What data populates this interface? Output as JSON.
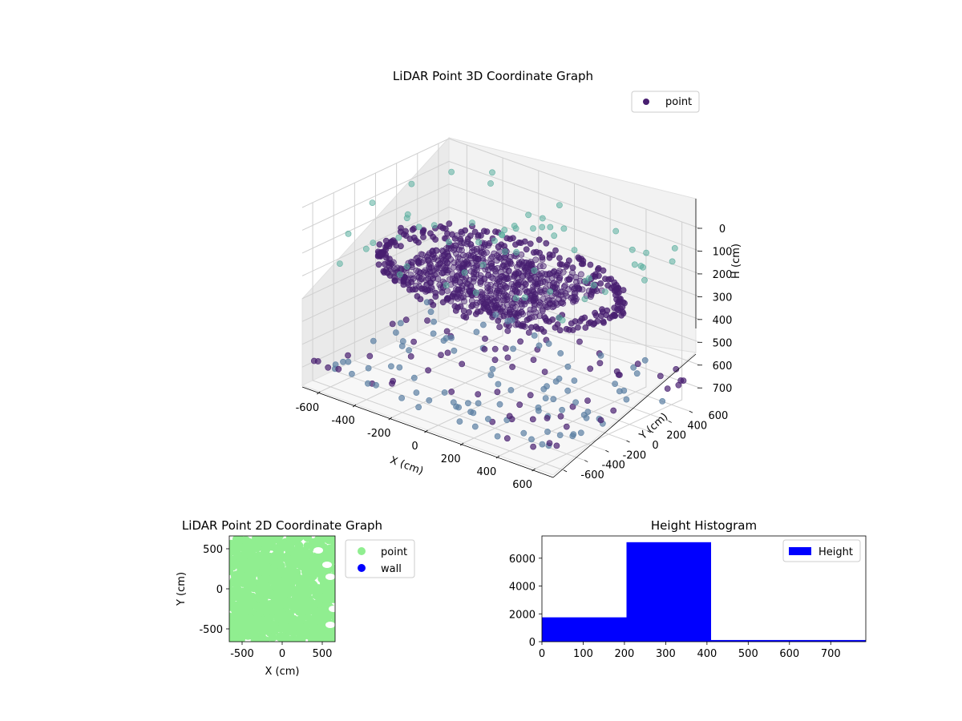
{
  "chart_data": [
    {
      "type": "scatter",
      "projection": "3d",
      "title": "LiDAR Point 3D Coordinate Graph",
      "xlabel": "X (cm)",
      "ylabel": "Y (cm)",
      "zlabel": "H (cm)",
      "xticks": [
        "-600",
        "-400",
        "-200",
        "0",
        "200",
        "400",
        "600"
      ],
      "yticks": [
        "-600",
        "-400",
        "-200",
        "0",
        "200",
        "400",
        "600"
      ],
      "zticks": [
        "0",
        "100",
        "200",
        "300",
        "400",
        "500",
        "600",
        "700"
      ],
      "xlim": [
        -700,
        700
      ],
      "ylim": [
        -700,
        700
      ],
      "zlim": [
        0,
        780
      ],
      "zinverted": true,
      "legend": {
        "entries": [
          "point"
        ],
        "position": "top-right"
      },
      "colormap": "viridis",
      "marker_colors": {
        "dominant": "#481f70",
        "outer": "#5b7fa3",
        "high": "#5aae9e"
      },
      "series": [
        {
          "name": "point",
          "description_groups": [
            {
              "group": "inner ring wall",
              "radius": 620,
              "h": [
                230,
                300
              ]
            },
            {
              "group": "central mass",
              "x": [
                -450,
                350
              ],
              "y": [
                -350,
                400
              ],
              "h": [
                260,
                320
              ]
            },
            {
              "group": "sparse floor points",
              "x": [
                -700,
                700
              ],
              "y": [
                -700,
                700
              ],
              "h": [
                650,
                700
              ]
            },
            {
              "group": "outer boundary points",
              "x": [
                -700,
                700
              ],
              "y": [
                -700,
                700
              ],
              "h": [
                50,
                200
              ]
            }
          ]
        }
      ],
      "grid": true
    },
    {
      "type": "scatter",
      "title": "LiDAR Point 2D Coordinate Graph",
      "xlabel": "X (cm)",
      "ylabel": "Y (cm)",
      "xticks": [
        "-500",
        "0",
        "500"
      ],
      "yticks": [
        "500",
        "0",
        "-500"
      ],
      "xlim": [
        -660,
        660
      ],
      "ylim": [
        -660,
        660
      ],
      "legend": {
        "entries": [
          "point",
          "wall"
        ],
        "position": "outside-right"
      },
      "series": [
        {
          "name": "point",
          "color": "#90ee90"
        },
        {
          "name": "wall",
          "color": "#0000ff"
        }
      ]
    },
    {
      "type": "bar",
      "title": "Height Histogram",
      "xticks": [
        "0",
        "100",
        "200",
        "300",
        "400",
        "500",
        "600",
        "700"
      ],
      "yticks": [
        "0",
        "2000",
        "4000",
        "6000"
      ],
      "xlim": [
        0,
        785
      ],
      "ylim": [
        0,
        7600
      ],
      "legend": {
        "entries": [
          "Height"
        ],
        "position": "top-right"
      },
      "bins": [
        {
          "from": 0,
          "to": 205,
          "count": 1750
        },
        {
          "from": 205,
          "to": 410,
          "count": 7150
        },
        {
          "from": 410,
          "to": 785,
          "count": 120
        }
      ],
      "series": [
        {
          "name": "Height",
          "color": "#0000ff"
        }
      ]
    }
  ]
}
